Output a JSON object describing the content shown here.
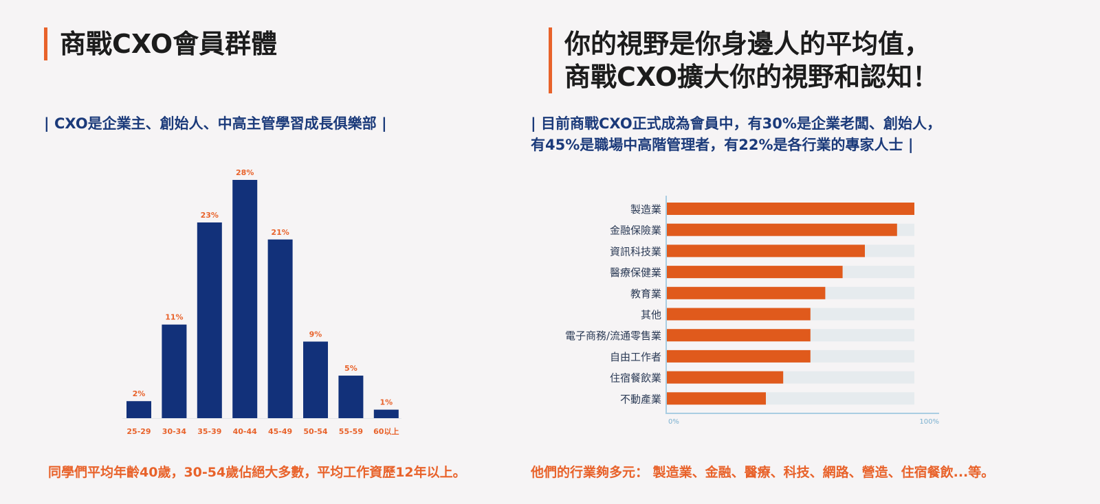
{
  "left": {
    "title": "商戰CXO會員群體",
    "subtitle": "|   CXO是企業主、創始人、中高主管學習成長俱樂部   |",
    "footer": "同學們平均年齡40歲，30-54歲佔絕大多數，平均工作資歷12年以上。"
  },
  "right": {
    "title_line1": "你的視野是你身邊人的平均值，",
    "title_line2": "商戰CXO擴大你的視野和認知！",
    "subtitle_line1": "|  目前商戰CXO正式成為會員中，有30%是企業老闆、創始人，",
    "subtitle_line2": "有45%是職場中高階管理者，有22%是各行業的專家人士   |",
    "footer": "他們的行業夠多元： 製造業、金融、醫療、科技、網路、營造、住宿餐飲...等。"
  },
  "colors": {
    "accent": "#e8622a",
    "navy": "#12317a",
    "bar_orange": "#e05a1c",
    "track": "#e6ebee"
  },
  "chart_data": [
    {
      "type": "bar",
      "categories": [
        "25-29",
        "30-34",
        "35-39",
        "40-44",
        "45-49",
        "50-54",
        "55-59",
        "60以上"
      ],
      "values": [
        2,
        11,
        23,
        28,
        21,
        9,
        5,
        1
      ],
      "value_labels": [
        "2%",
        "11%",
        "23%",
        "28%",
        "21%",
        "9%",
        "5%",
        "1%"
      ],
      "unit": "%",
      "ylim": [
        0,
        28
      ],
      "grid": false
    },
    {
      "type": "bar",
      "orientation": "horizontal",
      "categories": [
        "製造業",
        "金融保險業",
        "資訊科技業",
        "醫療保健業",
        "教育業",
        "其他",
        "電子商務/流通零售業",
        "自由工作者",
        "住宿餐飲業",
        "不動產業"
      ],
      "values": [
        100,
        93,
        80,
        71,
        64,
        58,
        58,
        58,
        47,
        40
      ],
      "xlim": [
        0,
        100
      ],
      "x_tick_labels": [
        "0%",
        "100%"
      ],
      "grid": false
    }
  ]
}
